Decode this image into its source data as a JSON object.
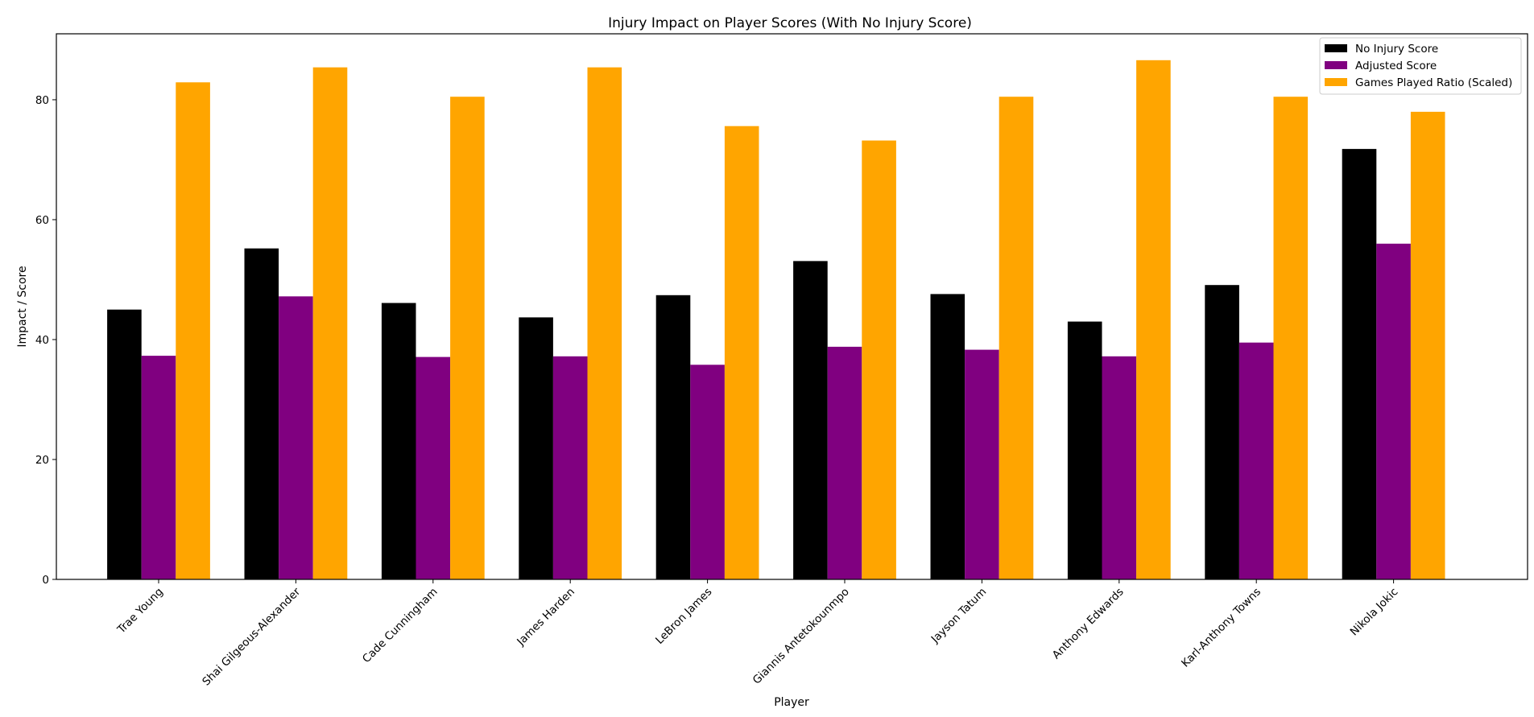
{
  "chart_data": {
    "type": "bar",
    "title": "Injury Impact on Player Scores (With No Injury Score)",
    "xlabel": "Player",
    "ylabel": "Impact / Score",
    "categories": [
      "Trae Young",
      "Shai Gilgeous-Alexander",
      "Cade Cunningham",
      "James Harden",
      "LeBron James",
      "Giannis Antetokounmpo",
      "Jayson Tatum",
      "Anthony Edwards",
      "Karl-Anthony Towns",
      "Nikola Jokic"
    ],
    "series": [
      {
        "name": "No Injury Score",
        "color": "#000000",
        "values": [
          45.0,
          55.2,
          46.1,
          43.7,
          47.4,
          53.1,
          47.6,
          43.0,
          49.1,
          71.8
        ]
      },
      {
        "name": "Adjusted Score",
        "color": "#800080",
        "values": [
          37.3,
          47.2,
          37.1,
          37.2,
          35.8,
          38.8,
          38.3,
          37.2,
          39.5,
          56.0
        ]
      },
      {
        "name": "Games Played Ratio (Scaled)",
        "color": "#FFA500",
        "values": [
          82.9,
          85.4,
          80.5,
          85.4,
          75.6,
          73.2,
          80.5,
          86.6,
          80.5,
          78.0
        ]
      }
    ],
    "yticks": [
      0,
      20,
      40,
      60,
      80
    ],
    "ylim": [
      0,
      91
    ],
    "grid": false,
    "legend_position": "top-right"
  }
}
